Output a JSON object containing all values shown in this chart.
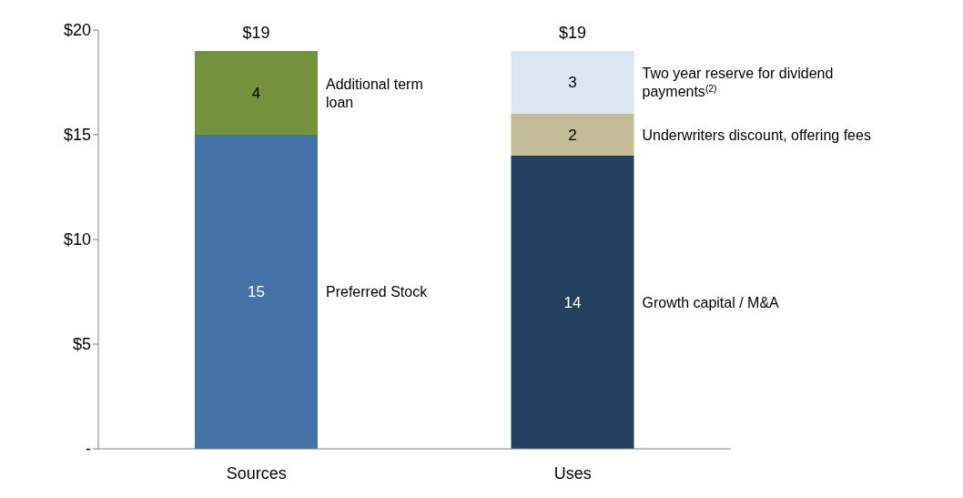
{
  "chart_data": {
    "type": "bar",
    "stacked": true,
    "categories": [
      "Sources",
      "Uses"
    ],
    "series": [
      {
        "name": "Preferred Stock",
        "color": "#4472a6",
        "values": [
          15,
          null
        ]
      },
      {
        "name": "Additional term loan",
        "color": "#77923c",
        "values": [
          4,
          null
        ]
      },
      {
        "name": "Growth capital / M&A",
        "color": "#243f5f",
        "values": [
          null,
          14
        ]
      },
      {
        "name": "Underwriters discount, offering fees",
        "color": "#c4bc97",
        "values": [
          null,
          2
        ]
      },
      {
        "name": "Two year reserve for dividend payments$^{(2)}$",
        "color": "#dce6f2",
        "values": [
          null,
          3
        ]
      }
    ],
    "ylim": [
      0,
      20
    ],
    "yticks": [
      {
        "value": 0,
        "label": "-"
      },
      {
        "value": 5,
        "label": "$5"
      },
      {
        "value": 10,
        "label": "$10"
      },
      {
        "value": 15,
        "label": "$15"
      },
      {
        "value": 20,
        "label": "$20"
      }
    ],
    "data_labels": true,
    "totals": [
      "$19",
      "$19"
    ],
    "grid": false,
    "legend": false
  }
}
